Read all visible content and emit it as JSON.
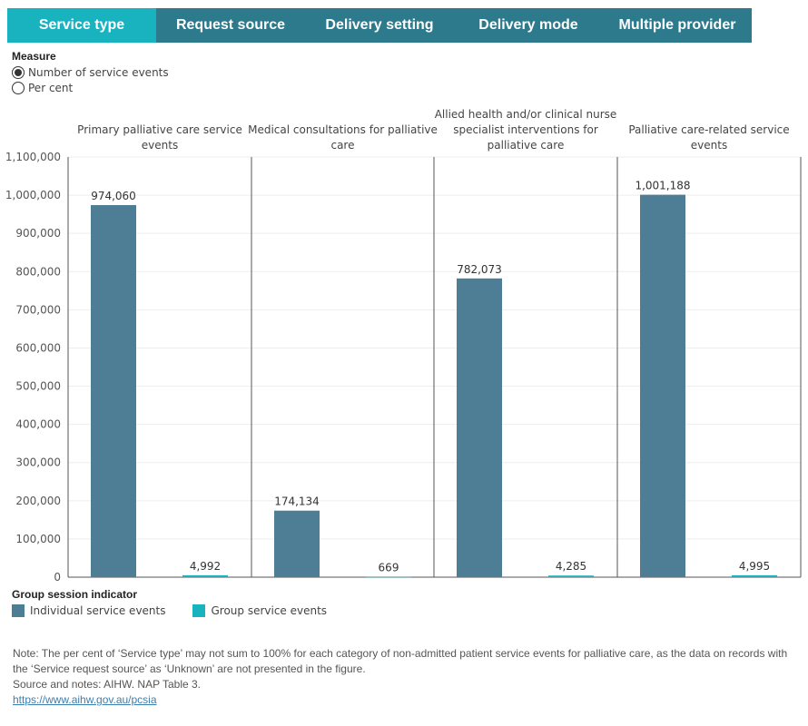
{
  "tabs": [
    {
      "label": "Service type",
      "active": true
    },
    {
      "label": "Request source",
      "active": false
    },
    {
      "label": "Delivery setting",
      "active": false
    },
    {
      "label": "Delivery mode",
      "active": false
    },
    {
      "label": "Multiple provider",
      "active": false
    }
  ],
  "measure": {
    "title": "Measure",
    "options": [
      {
        "label": "Number of service events",
        "selected": true
      },
      {
        "label": "Per cent",
        "selected": false
      }
    ]
  },
  "legend": {
    "title": "Group session indicator",
    "items": [
      {
        "label": "Individual service events",
        "color": "#4e7d96"
      },
      {
        "label": "Group service events",
        "color": "#19b3c0"
      }
    ]
  },
  "notes": {
    "line1": "Note: The per cent of ‘Service type’ may not sum to 100% for each category of non-admitted patient service events for palliative care, as the data on records with the ‘Service request source’ as ‘Unknown’ are not presented in the figure.",
    "line2": "Source and notes: AIHW. NAP Table 3.",
    "link": "https://www.aihw.gov.au/pcsia"
  },
  "chart_data": {
    "type": "bar",
    "panels": [
      {
        "title_lines": [
          "Primary palliative care service",
          "events"
        ],
        "values": [
          974060,
          4992
        ],
        "labels": [
          "974,060",
          "4,992"
        ]
      },
      {
        "title_lines": [
          "Medical consultations for palliative",
          "care"
        ],
        "values": [
          174134,
          669
        ],
        "labels": [
          "174,134",
          "669"
        ]
      },
      {
        "title_lines": [
          "Allied health and/or clinical nurse",
          "specialist interventions for",
          "palliative care"
        ],
        "values": [
          782073,
          4285
        ],
        "labels": [
          "782,073",
          "4,285"
        ]
      },
      {
        "title_lines": [
          "Palliative care-related service",
          "events"
        ],
        "values": [
          1001188,
          4995
        ],
        "labels": [
          "1,001,188",
          "4,995"
        ]
      }
    ],
    "series": [
      {
        "name": "Individual service events",
        "color": "#4e7d96"
      },
      {
        "name": "Group service events",
        "color": "#19b3c0"
      }
    ],
    "ylim": [
      0,
      1100000
    ],
    "yticks": [
      0,
      100000,
      200000,
      300000,
      400000,
      500000,
      600000,
      700000,
      800000,
      900000,
      1000000,
      1100000
    ],
    "ytick_labels": [
      "0",
      "100,000",
      "200,000",
      "300,000",
      "400,000",
      "500,000",
      "600,000",
      "700,000",
      "800,000",
      "900,000",
      "1,000,000",
      "1,100,000"
    ],
    "grid": true
  }
}
